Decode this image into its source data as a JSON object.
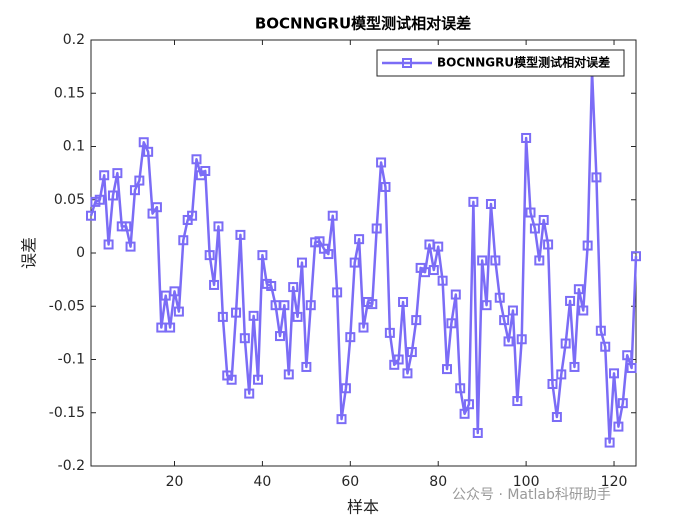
{
  "chart_data": {
    "type": "line",
    "title": "BOCNNGRU模型测试相对误差",
    "x_label": "样本",
    "y_label": "误差",
    "watermark": "公众号 · Matlab科研助手",
    "xlim": [
      1,
      125
    ],
    "xticks": [
      20,
      40,
      60,
      80,
      100,
      120
    ],
    "ylim": [
      -0.2,
      0.2
    ],
    "yticks": [
      -0.2,
      -0.15,
      -0.1,
      -0.05,
      0,
      0.05,
      0.1,
      0.15,
      0.2
    ],
    "legend": "upper right",
    "x": [
      1,
      2,
      3,
      4,
      5,
      6,
      7,
      8,
      9,
      10,
      11,
      12,
      13,
      14,
      15,
      16,
      17,
      18,
      19,
      20,
      21,
      22,
      23,
      24,
      25,
      26,
      27,
      28,
      29,
      30,
      31,
      32,
      33,
      34,
      35,
      36,
      37,
      38,
      39,
      40,
      41,
      42,
      43,
      44,
      45,
      46,
      47,
      48,
      49,
      50,
      51,
      52,
      53,
      54,
      55,
      56,
      57,
      58,
      59,
      60,
      61,
      62,
      63,
      64,
      65,
      66,
      67,
      68,
      69,
      70,
      71,
      72,
      73,
      74,
      75,
      76,
      77,
      78,
      79,
      80,
      81,
      82,
      83,
      84,
      85,
      86,
      87,
      88,
      89,
      90,
      91,
      92,
      93,
      94,
      95,
      96,
      97,
      98,
      99,
      100,
      101,
      102,
      103,
      104,
      105,
      106,
      107,
      108,
      109,
      110,
      111,
      112,
      113,
      114,
      115,
      116,
      117,
      118,
      119,
      120,
      121,
      122,
      123,
      124,
      125
    ],
    "series": [
      {
        "name": "BOCNNGRU模型测试相对误差",
        "color": "#7b6cf6",
        "values": [
          0.035,
          0.048,
          0.05,
          0.073,
          0.008,
          0.054,
          0.075,
          0.025,
          0.025,
          0.006,
          0.059,
          0.068,
          0.104,
          0.095,
          0.037,
          0.043,
          -0.07,
          -0.04,
          -0.07,
          -0.036,
          -0.055,
          0.012,
          0.031,
          0.035,
          0.088,
          0.073,
          0.077,
          -0.002,
          -0.03,
          0.025,
          -0.06,
          -0.115,
          -0.119,
          -0.056,
          0.017,
          -0.08,
          -0.132,
          -0.059,
          -0.119,
          -0.002,
          -0.029,
          -0.031,
          -0.049,
          -0.078,
          -0.049,
          -0.114,
          -0.032,
          -0.06,
          -0.009,
          -0.107,
          -0.049,
          0.01,
          0.011,
          0.004,
          -0.001,
          0.035,
          -0.037,
          -0.156,
          -0.127,
          -0.079,
          -0.009,
          0.013,
          -0.07,
          -0.046,
          -0.048,
          0.023,
          0.085,
          0.062,
          -0.075,
          -0.105,
          -0.1,
          -0.046,
          -0.113,
          -0.093,
          -0.063,
          -0.014,
          -0.018,
          0.008,
          -0.016,
          0.006,
          -0.026,
          -0.109,
          -0.066,
          -0.039,
          -0.127,
          -0.151,
          -0.142,
          0.048,
          -0.169,
          -0.007,
          -0.049,
          0.046,
          -0.007,
          -0.042,
          -0.063,
          -0.083,
          -0.054,
          -0.139,
          -0.081,
          0.108,
          0.038,
          0.023,
          -0.007,
          0.031,
          0.008,
          -0.123,
          -0.154,
          -0.114,
          -0.085,
          -0.045,
          -0.107,
          -0.034,
          -0.054,
          0.007,
          0.171,
          0.071,
          -0.073,
          -0.088,
          -0.178,
          -0.113,
          -0.163,
          -0.141,
          -0.096,
          -0.108,
          -0.003
        ]
      }
    ]
  }
}
